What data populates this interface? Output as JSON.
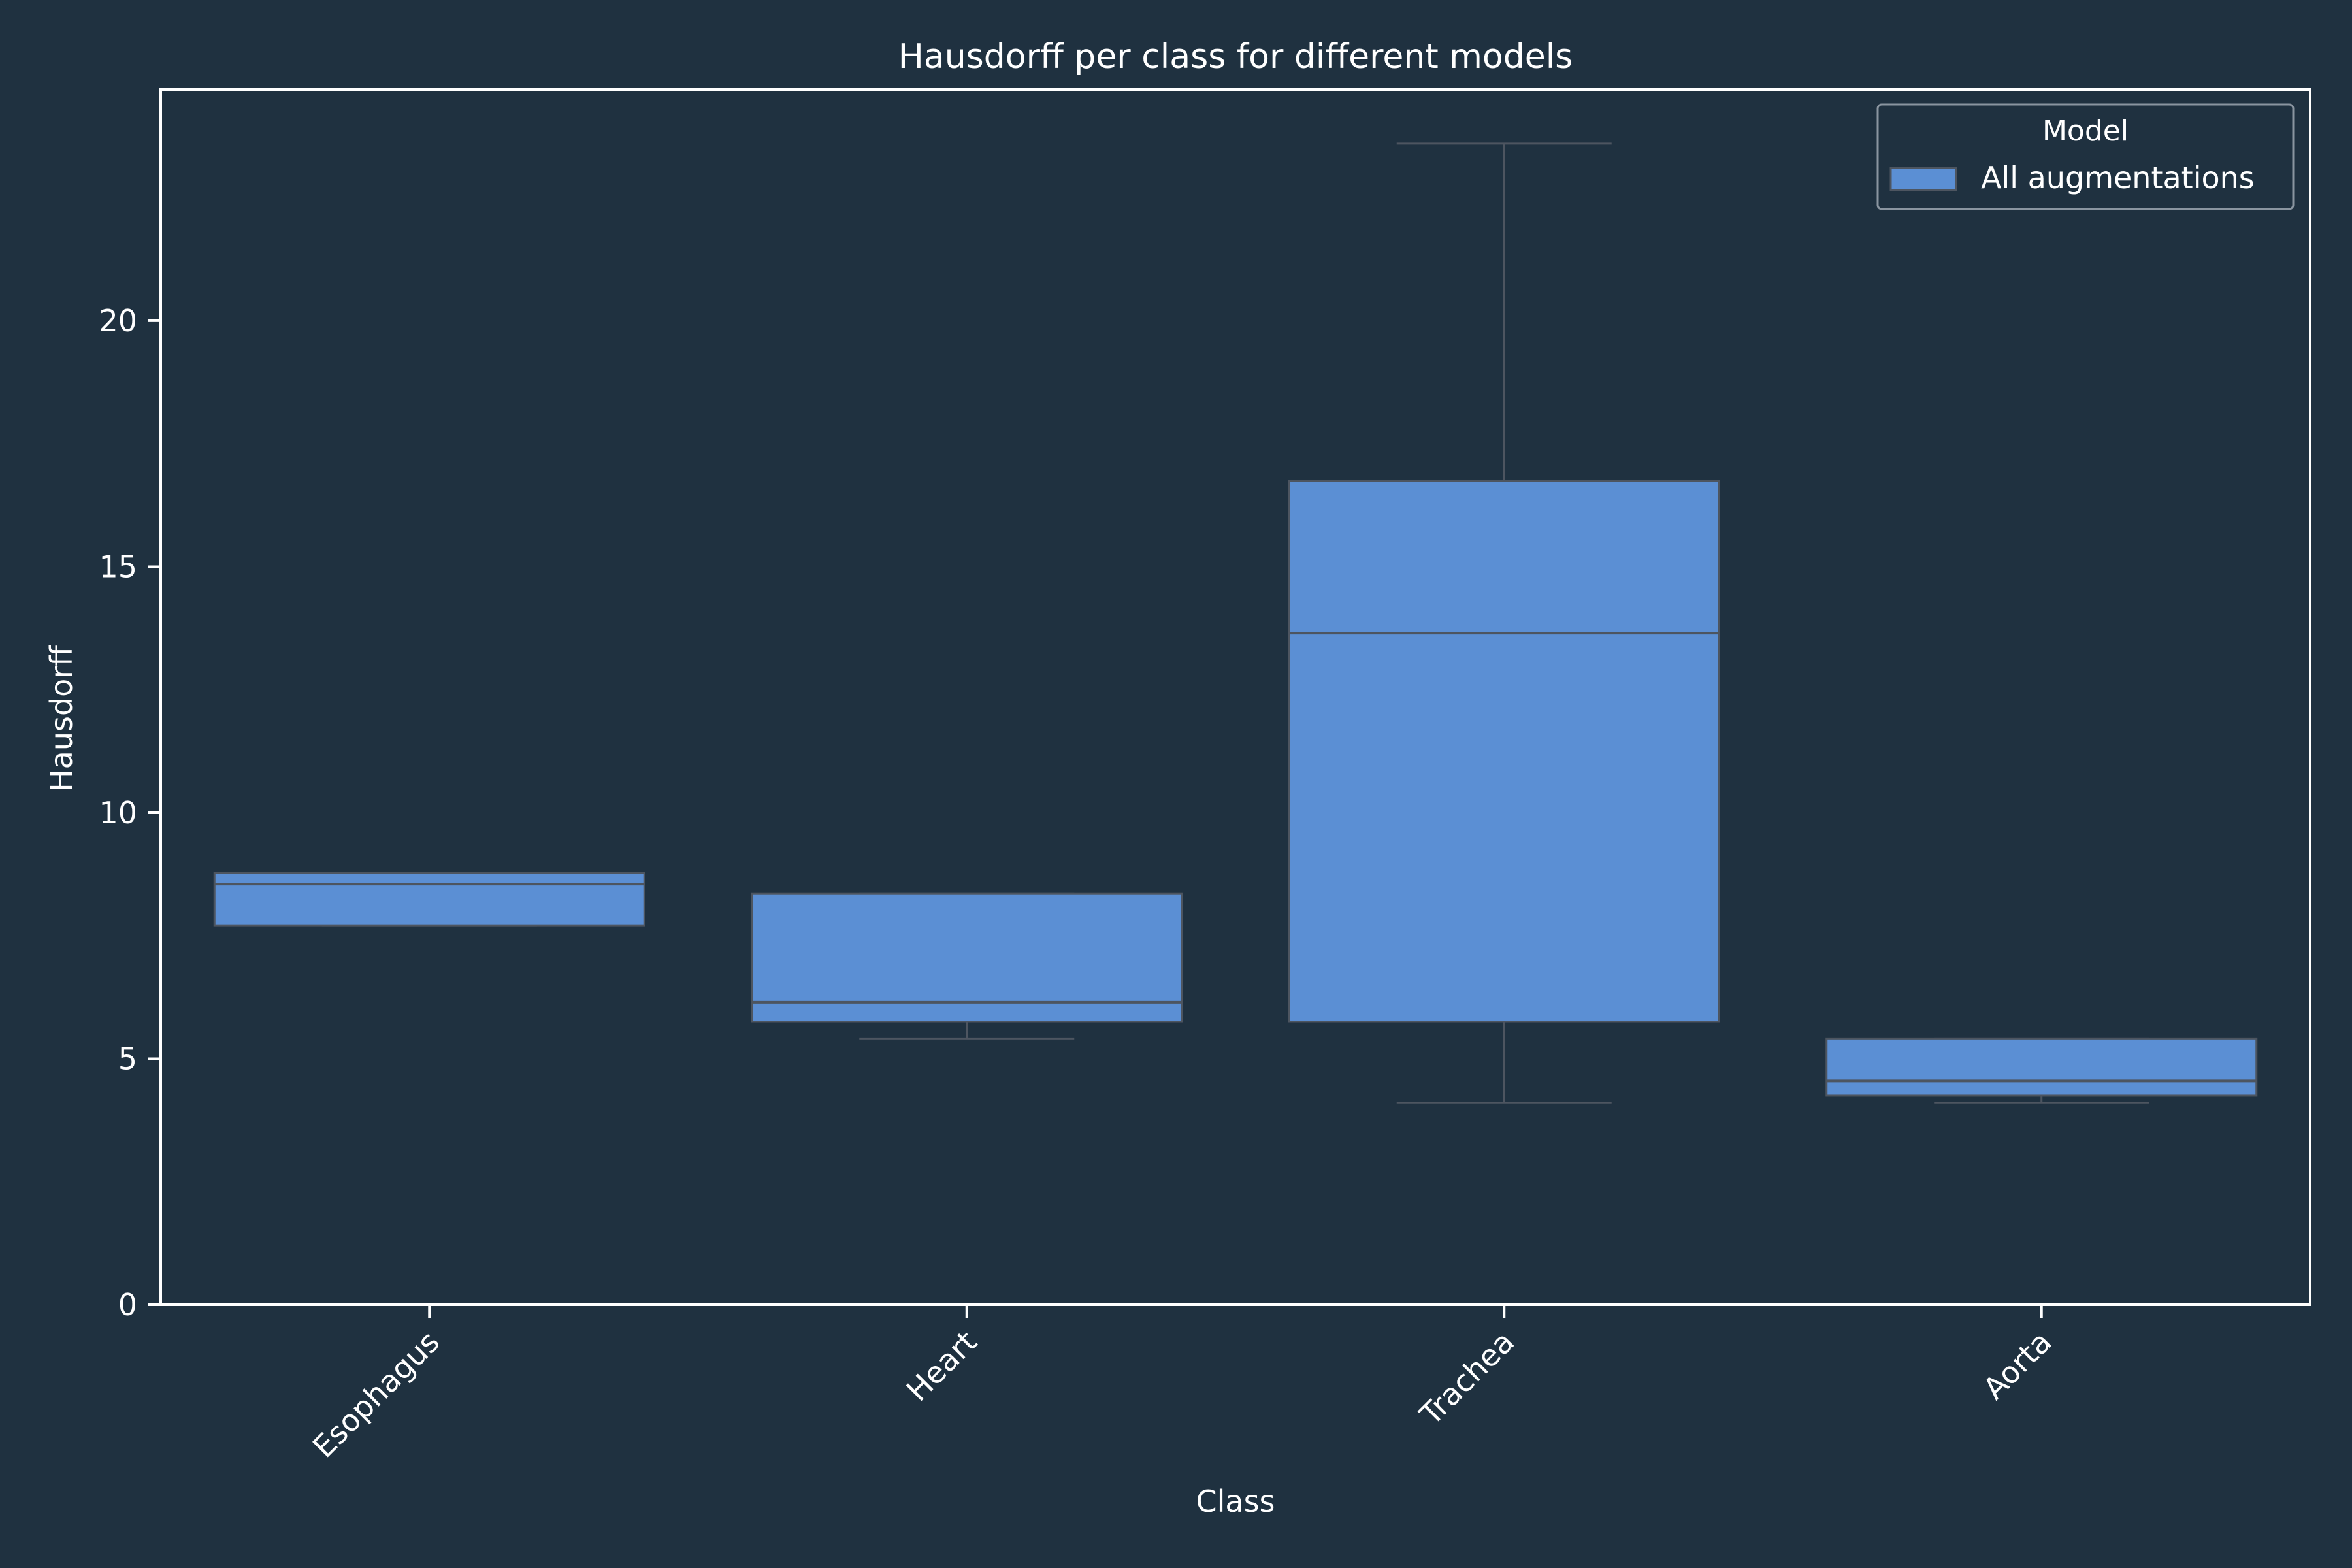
{
  "chart_data": {
    "type": "box",
    "title": "Hausdorff per class for different models",
    "xlabel": "Class",
    "ylabel": "Hausdorff",
    "ylim": [
      0,
      24.7
    ],
    "yticks": [
      0,
      5,
      10,
      15,
      20
    ],
    "categories": [
      "Esophagus",
      "Heart",
      "Trachea",
      "Aorta"
    ],
    "legend": {
      "title": "Model",
      "placement": "top-right"
    },
    "series": [
      {
        "name": "All augmentations",
        "color": "#5b8fd4",
        "boxes": [
          {
            "whisker_low": 7.7,
            "q1": 7.7,
            "median": 8.55,
            "q3": 8.78,
            "whisker_high": 8.78
          },
          {
            "whisker_low": 5.4,
            "q1": 5.75,
            "median": 6.15,
            "q3": 8.35,
            "whisker_high": 8.35
          },
          {
            "whisker_low": 4.1,
            "q1": 5.75,
            "median": 13.65,
            "q3": 16.75,
            "whisker_high": 23.6
          },
          {
            "whisker_low": 4.1,
            "q1": 4.25,
            "median": 4.55,
            "q3": 5.4,
            "whisker_high": 5.4
          }
        ]
      }
    ],
    "colors": {
      "background": "#1f3140",
      "axes": "#ffffff",
      "box_edge": "#4d5560"
    }
  }
}
